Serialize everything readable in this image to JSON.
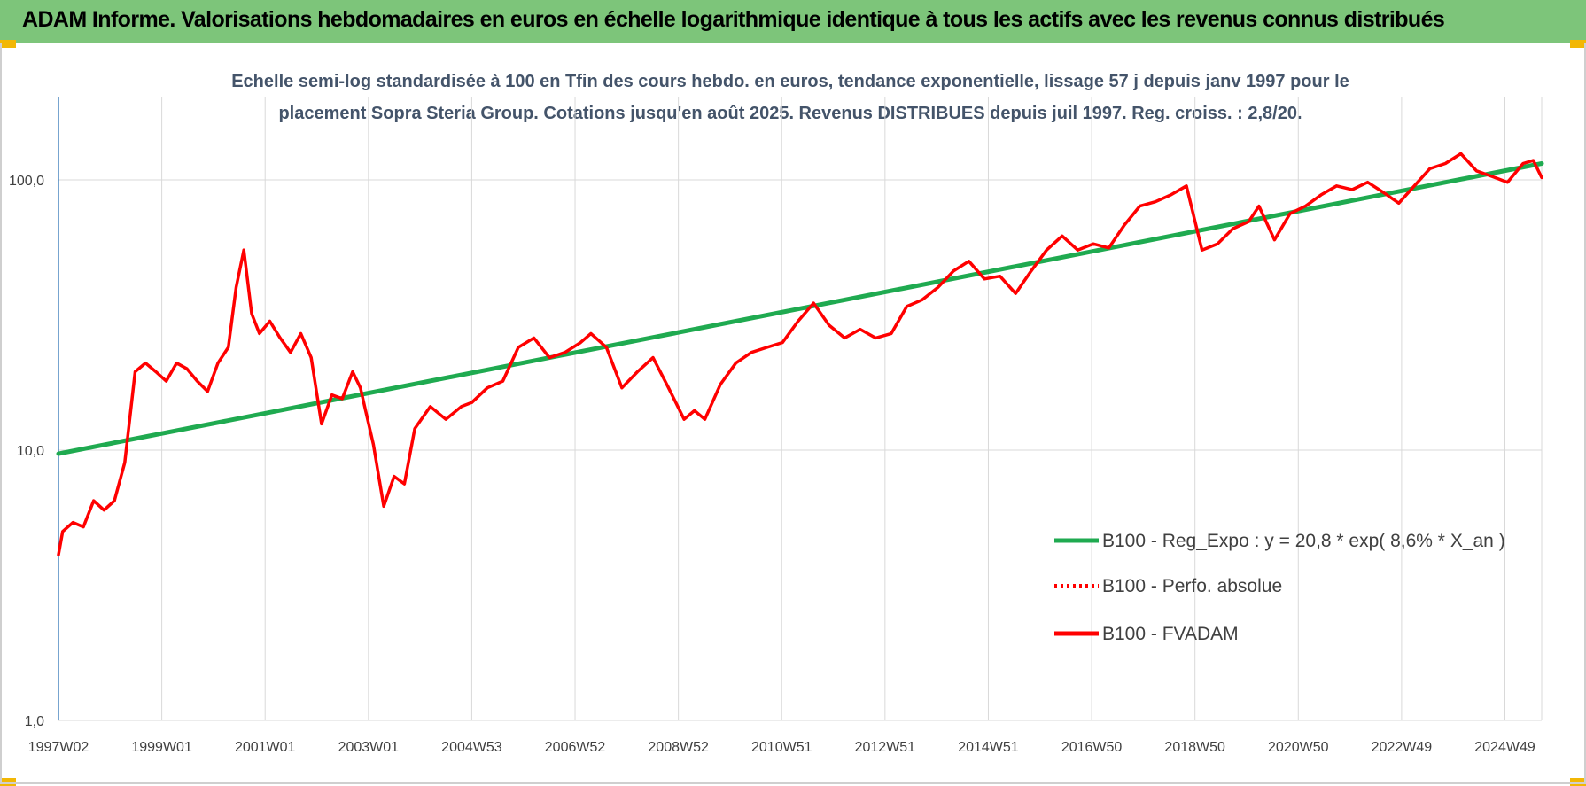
{
  "header": {
    "title": "ADAM Informe. Valorisations hebdomadaires en euros en échelle logarithmique identique à tous les actifs avec les revenus connus distribués"
  },
  "colors": {
    "banner": "#7dc57a",
    "corner": "#f2b705",
    "regression": "#1faa50",
    "fvadam": "#ff0000",
    "perfo": "#ff0000",
    "grid": "#d9d9d9",
    "axis": "#2e74b5"
  },
  "chart_data": {
    "type": "line",
    "subtitle_lines": [
      "Echelle semi-log standardisée à 100 en Tfin des cours hebdo. en euros, tendance exponentielle, lissage 57 j depuis janv 1997 pour le",
      "placement Sopra Steria Group. Cotations jusqu'en août 2025. Revenus DISTRIBUES depuis juil 1997. Reg. croiss. : 2,8/20."
    ],
    "y_scale": "log",
    "ylim": [
      1,
      100
    ],
    "y_ticks": [
      "1,0",
      "10,0",
      "100,0"
    ],
    "x_range": [
      1997.02,
      2025.66
    ],
    "x_tick_labels": [
      "1997W02",
      "1999W01",
      "2001W01",
      "2003W01",
      "2004W53",
      "2006W52",
      "2008W52",
      "2010W51",
      "2012W51",
      "2014W51",
      "2016W50",
      "2018W50",
      "2020W50",
      "2022W49",
      "2024W49"
    ],
    "grid": "vertical",
    "legend_position": "bottom-right",
    "legend": [
      {
        "label": "B100 - Reg_Expo : y = 20,8 * exp( 8,6% *  X_an )",
        "style": "solid",
        "color": "#1faa50"
      },
      {
        "label": "B100 - Perfo. absolue",
        "style": "dotted",
        "color": "#ff0000"
      },
      {
        "label": "B100 - FVADAM",
        "style": "solid",
        "color": "#ff0000"
      }
    ],
    "series": [
      {
        "name": "B100 - Reg_Expo",
        "x": [
          1997.02,
          2025.66
        ],
        "y": [
          9.7,
          115
        ]
      },
      {
        "name": "B100 - FVADAM",
        "x": [
          1997.02,
          1997.1,
          1997.3,
          1997.5,
          1997.7,
          1997.9,
          1998.1,
          1998.3,
          1998.5,
          1998.7,
          1998.9,
          1999.1,
          1999.3,
          1999.5,
          1999.7,
          1999.9,
          2000.1,
          2000.3,
          2000.45,
          2000.6,
          2000.75,
          2000.9,
          2001.1,
          2001.3,
          2001.5,
          2001.7,
          2001.9,
          2002.1,
          2002.3,
          2002.5,
          2002.7,
          2002.85,
          2002.95,
          2003.1,
          2003.3,
          2003.5,
          2003.7,
          2003.9,
          2004.2,
          2004.5,
          2004.8,
          2005.0,
          2005.3,
          2005.6,
          2005.9,
          2006.2,
          2006.5,
          2006.8,
          2007.1,
          2007.3,
          2007.6,
          2007.9,
          2008.2,
          2008.5,
          2008.8,
          2009.1,
          2009.3,
          2009.5,
          2009.8,
          2010.1,
          2010.4,
          2010.7,
          2011.0,
          2011.3,
          2011.6,
          2011.9,
          2012.2,
          2012.5,
          2012.8,
          2013.1,
          2013.4,
          2013.7,
          2014.0,
          2014.3,
          2014.6,
          2014.9,
          2015.2,
          2015.5,
          2015.8,
          2016.1,
          2016.4,
          2016.7,
          2017.0,
          2017.3,
          2017.6,
          2017.9,
          2018.2,
          2018.5,
          2018.8,
          2019.1,
          2019.4,
          2019.7,
          2020.0,
          2020.2,
          2020.5,
          2020.8,
          2021.1,
          2021.4,
          2021.7,
          2022.0,
          2022.3,
          2022.6,
          2022.9,
          2023.2,
          2023.5,
          2023.8,
          2024.1,
          2024.4,
          2024.7,
          2025.0,
          2025.3,
          2025.5,
          2025.66
        ],
        "y": [
          4.1,
          5.0,
          5.4,
          5.2,
          6.5,
          6.0,
          6.5,
          9.0,
          19.5,
          21.0,
          19.5,
          18.0,
          21.0,
          20.0,
          18.0,
          16.5,
          21.0,
          24.0,
          40.0,
          55.0,
          32.0,
          27.0,
          30.0,
          26.0,
          23.0,
          27.0,
          22.0,
          12.5,
          16.0,
          15.5,
          19.5,
          17.0,
          14.0,
          10.5,
          6.2,
          8.0,
          7.5,
          12.0,
          14.5,
          13.0,
          14.5,
          15.0,
          17.0,
          18.0,
          24.0,
          26.0,
          22.0,
          23.0,
          25.0,
          27.0,
          24.0,
          17.0,
          19.5,
          22.0,
          17.0,
          13.0,
          14.0,
          13.0,
          17.5,
          21.0,
          23.0,
          24.0,
          25.0,
          30.0,
          35.0,
          29.0,
          26.0,
          28.0,
          26.0,
          27.0,
          34.0,
          36.0,
          40.0,
          46.0,
          50.0,
          43.0,
          44.0,
          38.0,
          46.0,
          55.0,
          62.0,
          55.0,
          58.0,
          56.0,
          68.0,
          80.0,
          83.0,
          88.0,
          95.0,
          55.0,
          58.0,
          66.0,
          70.0,
          80.0,
          60.0,
          75.0,
          80.0,
          88.0,
          95.0,
          92.0,
          98.0,
          90.0,
          82.0,
          95.0,
          110.0,
          115.0,
          125.0,
          108.0,
          103.0,
          98.0,
          115.0,
          118.0,
          102.0
        ]
      }
    ]
  }
}
